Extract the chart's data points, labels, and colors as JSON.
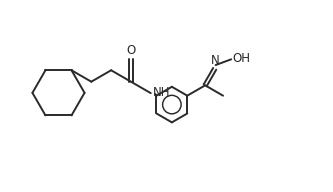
{
  "bg_color": "#ffffff",
  "line_color": "#2a2a2a",
  "line_width": 1.4,
  "text_color": "#2a2a2a",
  "font_size": 8.5,
  "xlim": [
    0,
    10
  ],
  "ylim": [
    0,
    6
  ],
  "figsize": [
    3.33,
    1.92
  ],
  "dpi": 100
}
